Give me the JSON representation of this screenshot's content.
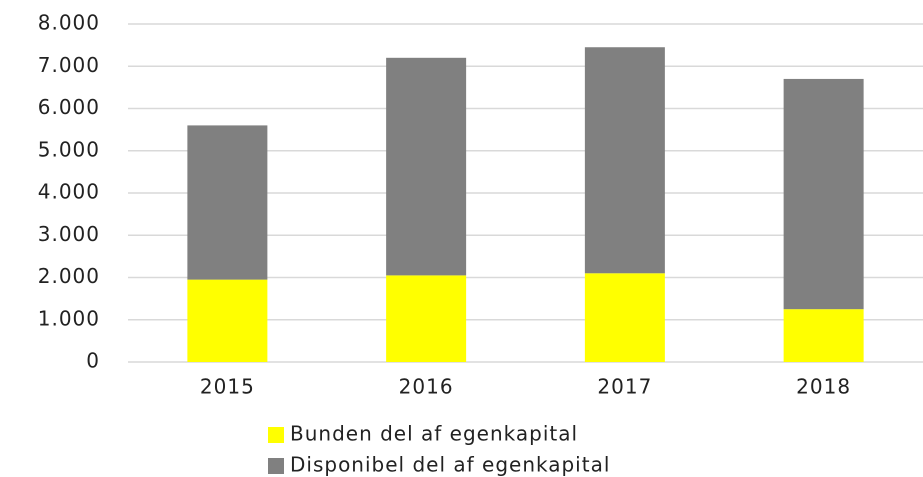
{
  "chart_data": {
    "type": "stacked_bar",
    "categories": [
      "2015",
      "2016",
      "2017",
      "2018"
    ],
    "series": [
      {
        "name": "Bunden del af egenkapital",
        "color": "#ffff00",
        "values": [
          1950,
          2050,
          2100,
          1250
        ]
      },
      {
        "name": "Disponibel del af egenkapital",
        "color": "#808080",
        "values": [
          3650,
          5150,
          5350,
          5450
        ]
      }
    ],
    "ylim": [
      0,
      8000
    ],
    "yticks": [
      0,
      {
        "value": 1000,
        "label": "1.000"
      },
      {
        "value": 2000,
        "label": "2.000"
      },
      {
        "value": 3000,
        "label": "3.000"
      },
      {
        "value": 4000,
        "label": "4.000"
      },
      {
        "value": 5000,
        "label": "5.000"
      },
      {
        "value": 6000,
        "label": "6.000"
      },
      {
        "value": 7000,
        "label": "7.000"
      },
      {
        "value": 8000,
        "label": "8.000"
      }
    ],
    "grid": true,
    "legend": "bottom"
  }
}
